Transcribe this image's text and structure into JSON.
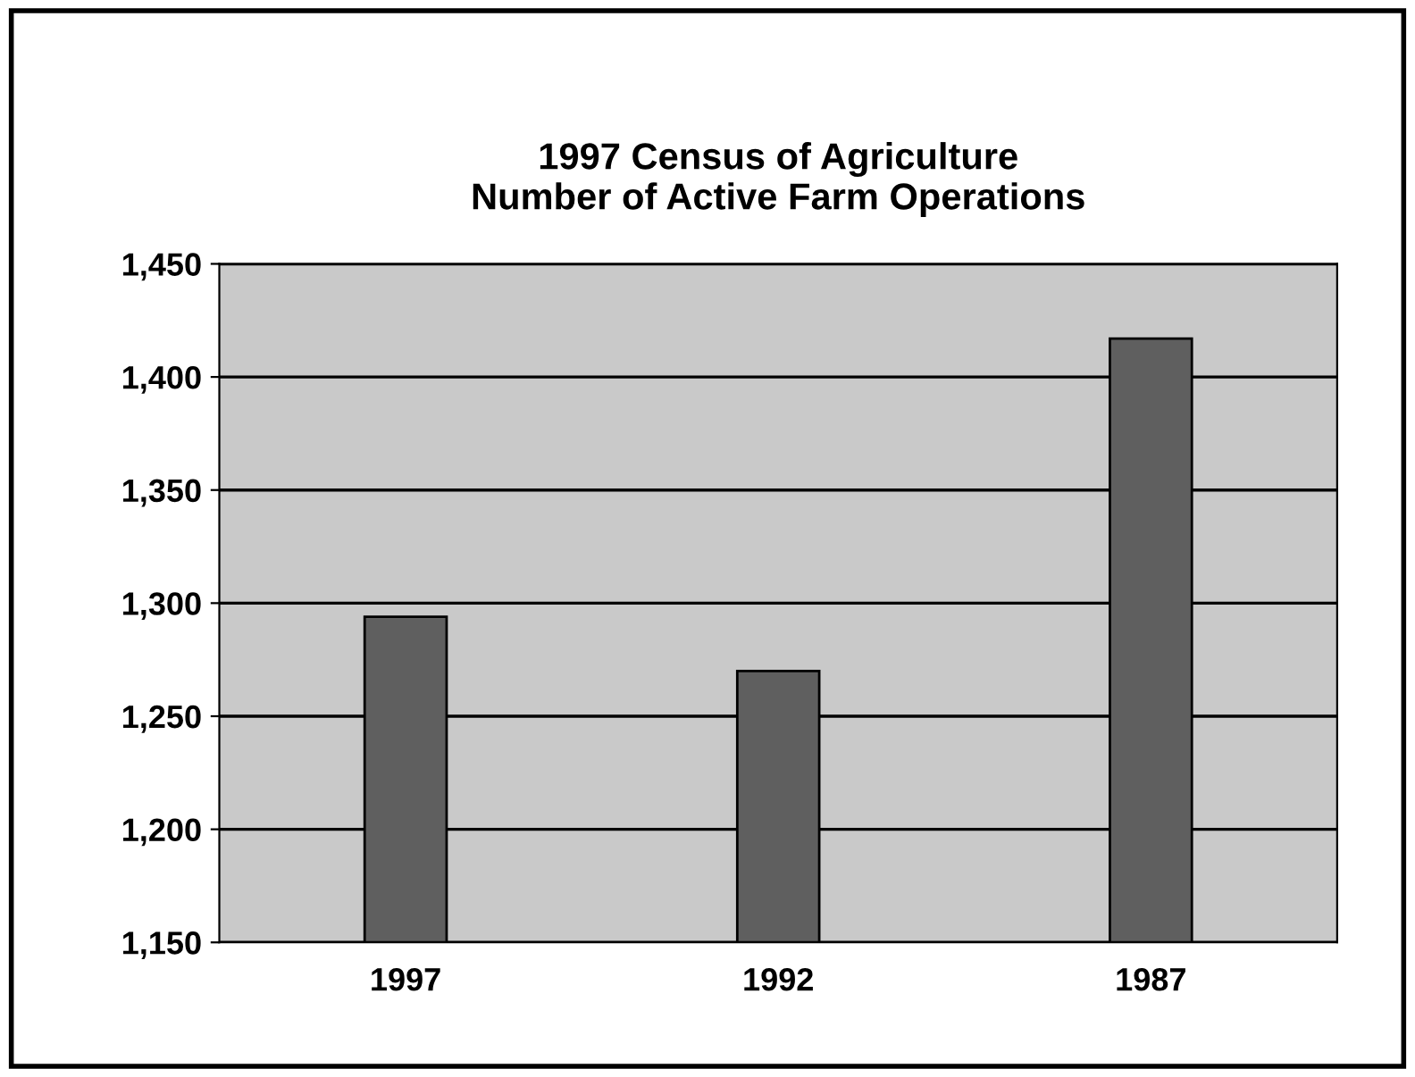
{
  "chart_data": {
    "type": "bar",
    "title": "1997 Census of Agriculture\nNumber of Active Farm Operations",
    "categories": [
      "1997",
      "1992",
      "1987"
    ],
    "values": [
      1294,
      1270,
      1417
    ],
    "color": "#5f5f5f",
    "ylim": [
      1150,
      1450
    ],
    "yticks": [
      {
        "value": 1150,
        "label": "1,150"
      },
      {
        "value": 1200,
        "label": "1,200"
      },
      {
        "value": 1250,
        "label": "1,250"
      },
      {
        "value": 1300,
        "label": "1,300"
      },
      {
        "value": 1350,
        "label": "1,350"
      },
      {
        "value": 1400,
        "label": "1,400"
      },
      {
        "value": 1450,
        "label": "1,450"
      }
    ],
    "grid": "y"
  }
}
